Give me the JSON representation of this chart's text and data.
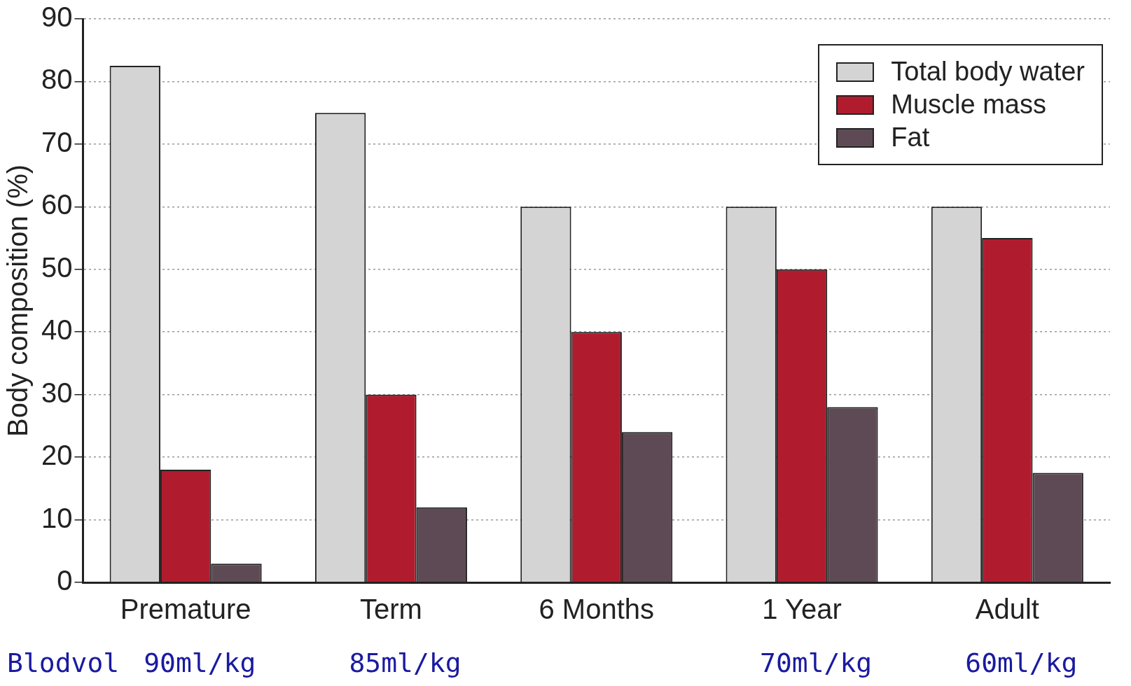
{
  "chart_data": {
    "type": "bar",
    "ylabel": "Body composition (%)",
    "categories": [
      "Premature",
      "Term",
      "6 Months",
      "1 Year",
      "Adult"
    ],
    "series": [
      {
        "name": "Total body water",
        "color": "#d4d4d4",
        "values": [
          82.5,
          75,
          60,
          60,
          60
        ]
      },
      {
        "name": "Muscle mass",
        "color": "#b01c2e",
        "values": [
          18,
          30,
          40,
          50,
          55
        ]
      },
      {
        "name": "Fat",
        "color": "#5e4a55",
        "values": [
          3,
          12,
          24,
          28,
          17.5
        ]
      }
    ],
    "ylim": [
      0,
      90
    ],
    "yticks": [
      0,
      10,
      20,
      30,
      40,
      50,
      60,
      70,
      80,
      90
    ],
    "grid": "y",
    "legend": "top right",
    "annotations": [
      "Blodvol",
      "90ml/kg",
      "85ml/kg",
      "70ml/kg",
      "60ml/kg"
    ]
  }
}
